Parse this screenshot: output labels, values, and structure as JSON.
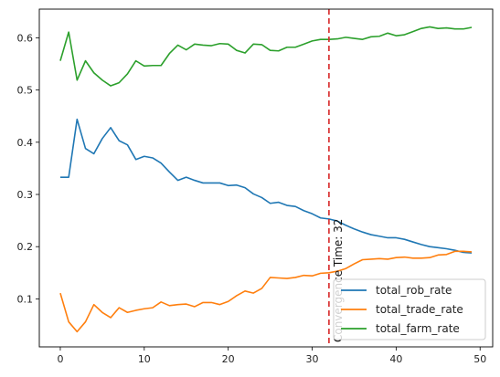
{
  "chart_data": {
    "type": "line",
    "title": "",
    "xlabel": "",
    "ylabel": "",
    "xlim": [
      -2.5,
      51.5
    ],
    "ylim": [
      0.008,
      0.655
    ],
    "xticks": [
      0,
      10,
      20,
      30,
      40,
      50
    ],
    "yticks": [
      0.1,
      0.2,
      0.3,
      0.4,
      0.5,
      0.6
    ],
    "xtick_labels": [
      "0",
      "10",
      "20",
      "30",
      "40",
      "50"
    ],
    "ytick_labels": [
      "0.1",
      "0.2",
      "0.3",
      "0.4",
      "0.5",
      "0.6"
    ],
    "grid": false,
    "legend_position": "lower-right",
    "x": [
      0,
      1,
      2,
      3,
      4,
      5,
      6,
      7,
      8,
      9,
      10,
      11,
      12,
      13,
      14,
      15,
      16,
      17,
      18,
      19,
      20,
      21,
      22,
      23,
      24,
      25,
      26,
      27,
      28,
      29,
      30,
      31,
      32,
      33,
      34,
      35,
      36,
      37,
      38,
      39,
      40,
      41,
      42,
      43,
      44,
      45,
      46,
      47,
      48,
      49
    ],
    "series": [
      {
        "name": "total_rob_rate",
        "color": "#1f77b4",
        "values": [
          0.333,
          0.333,
          0.444,
          0.388,
          0.378,
          0.407,
          0.428,
          0.403,
          0.395,
          0.367,
          0.373,
          0.37,
          0.36,
          0.343,
          0.327,
          0.333,
          0.327,
          0.322,
          0.322,
          0.322,
          0.317,
          0.318,
          0.313,
          0.301,
          0.294,
          0.283,
          0.285,
          0.279,
          0.277,
          0.269,
          0.263,
          0.255,
          0.253,
          0.249,
          0.241,
          0.234,
          0.228,
          0.223,
          0.22,
          0.217,
          0.217,
          0.214,
          0.209,
          0.204,
          0.2,
          0.198,
          0.196,
          0.193,
          0.189,
          0.188
        ]
      },
      {
        "name": "total_trade_rate",
        "color": "#ff7f0e",
        "values": [
          0.111,
          0.056,
          0.037,
          0.056,
          0.089,
          0.074,
          0.064,
          0.083,
          0.074,
          0.078,
          0.081,
          0.083,
          0.094,
          0.087,
          0.089,
          0.09,
          0.085,
          0.093,
          0.093,
          0.089,
          0.095,
          0.106,
          0.115,
          0.111,
          0.12,
          0.141,
          0.14,
          0.139,
          0.141,
          0.145,
          0.144,
          0.149,
          0.15,
          0.153,
          0.158,
          0.167,
          0.175,
          0.176,
          0.177,
          0.176,
          0.179,
          0.18,
          0.178,
          0.178,
          0.179,
          0.184,
          0.185,
          0.191,
          0.191,
          0.19
        ]
      },
      {
        "name": "total_farm_rate",
        "color": "#2ca02c",
        "values": [
          0.556,
          0.611,
          0.519,
          0.556,
          0.533,
          0.519,
          0.508,
          0.514,
          0.531,
          0.556,
          0.546,
          0.547,
          0.547,
          0.57,
          0.586,
          0.577,
          0.588,
          0.586,
          0.585,
          0.589,
          0.588,
          0.576,
          0.571,
          0.588,
          0.587,
          0.576,
          0.575,
          0.582,
          0.582,
          0.588,
          0.594,
          0.597,
          0.597,
          0.598,
          0.601,
          0.599,
          0.597,
          0.602,
          0.603,
          0.609,
          0.604,
          0.606,
          0.612,
          0.618,
          0.621,
          0.618,
          0.619,
          0.617,
          0.617,
          0.62
        ]
      }
    ],
    "annotations": [
      {
        "type": "vline",
        "x": 32,
        "color": "#d62728",
        "linestyle": "dashed",
        "text": "Convergence Time: 32"
      }
    ]
  }
}
